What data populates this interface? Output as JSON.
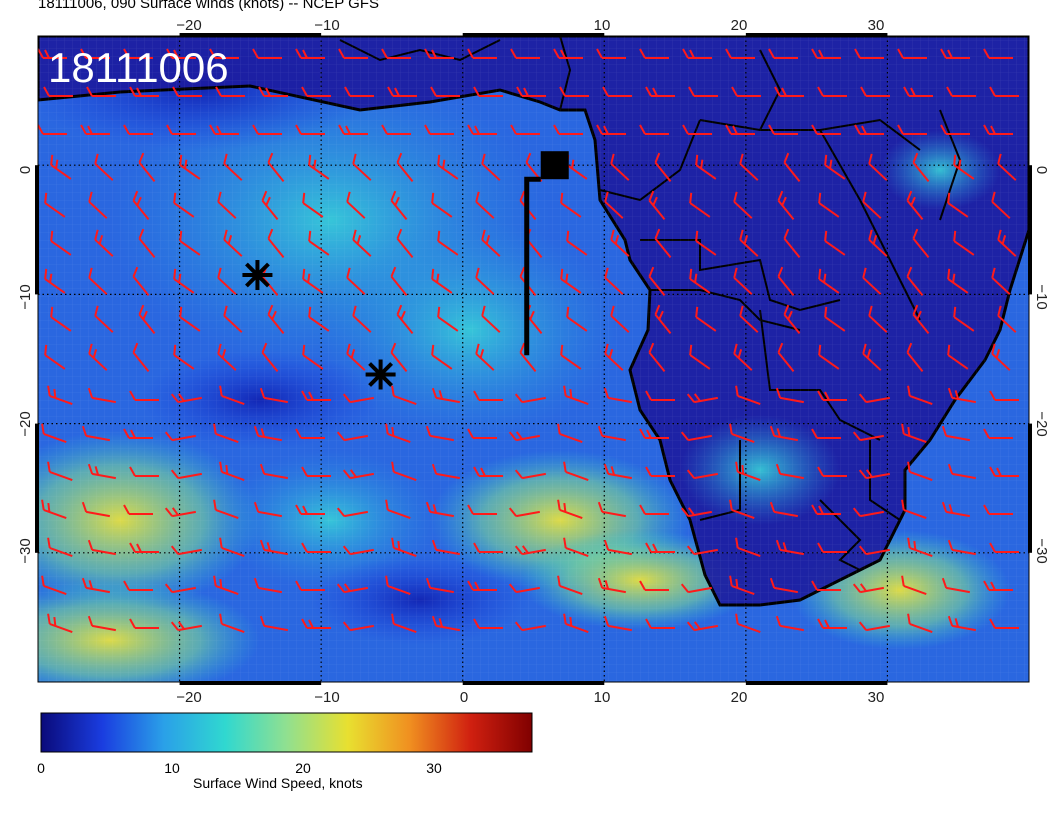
{
  "header": {
    "title": "18111006, 090 Surface winds (knots) -- NCEP GFS"
  },
  "overlay": {
    "time_stamp": "18111006"
  },
  "map": {
    "lon_range": [
      -30,
      40
    ],
    "lat_range": [
      -40,
      10
    ],
    "x_ticks": [
      "−20",
      "−10",
      "0",
      "10",
      "20",
      "30"
    ],
    "y_ticks": [
      "0",
      "−10",
      "−20",
      "−30"
    ],
    "barb_color": "#ff1a1a",
    "land_color": "#1c1ca0",
    "ocean_color": "#2a67e0",
    "strong_wind_color": "#d8e050"
  },
  "markers": [
    {
      "name": "asterisk-1",
      "lon": -14.5,
      "lat": -8.5
    },
    {
      "name": "asterisk-2",
      "lon": -5.8,
      "lat": -16.2
    },
    {
      "name": "square-marker",
      "lon": 6.5,
      "lat": 0
    }
  ],
  "colorbar": {
    "ticks": [
      "0",
      "10",
      "20",
      "30"
    ],
    "label": "Surface Wind Speed, knots",
    "colors": [
      "#0a0a7a",
      "#1a3de0",
      "#2aa0e8",
      "#30d8d0",
      "#90e090",
      "#e8e030",
      "#f09020",
      "#d02010",
      "#800000"
    ]
  }
}
